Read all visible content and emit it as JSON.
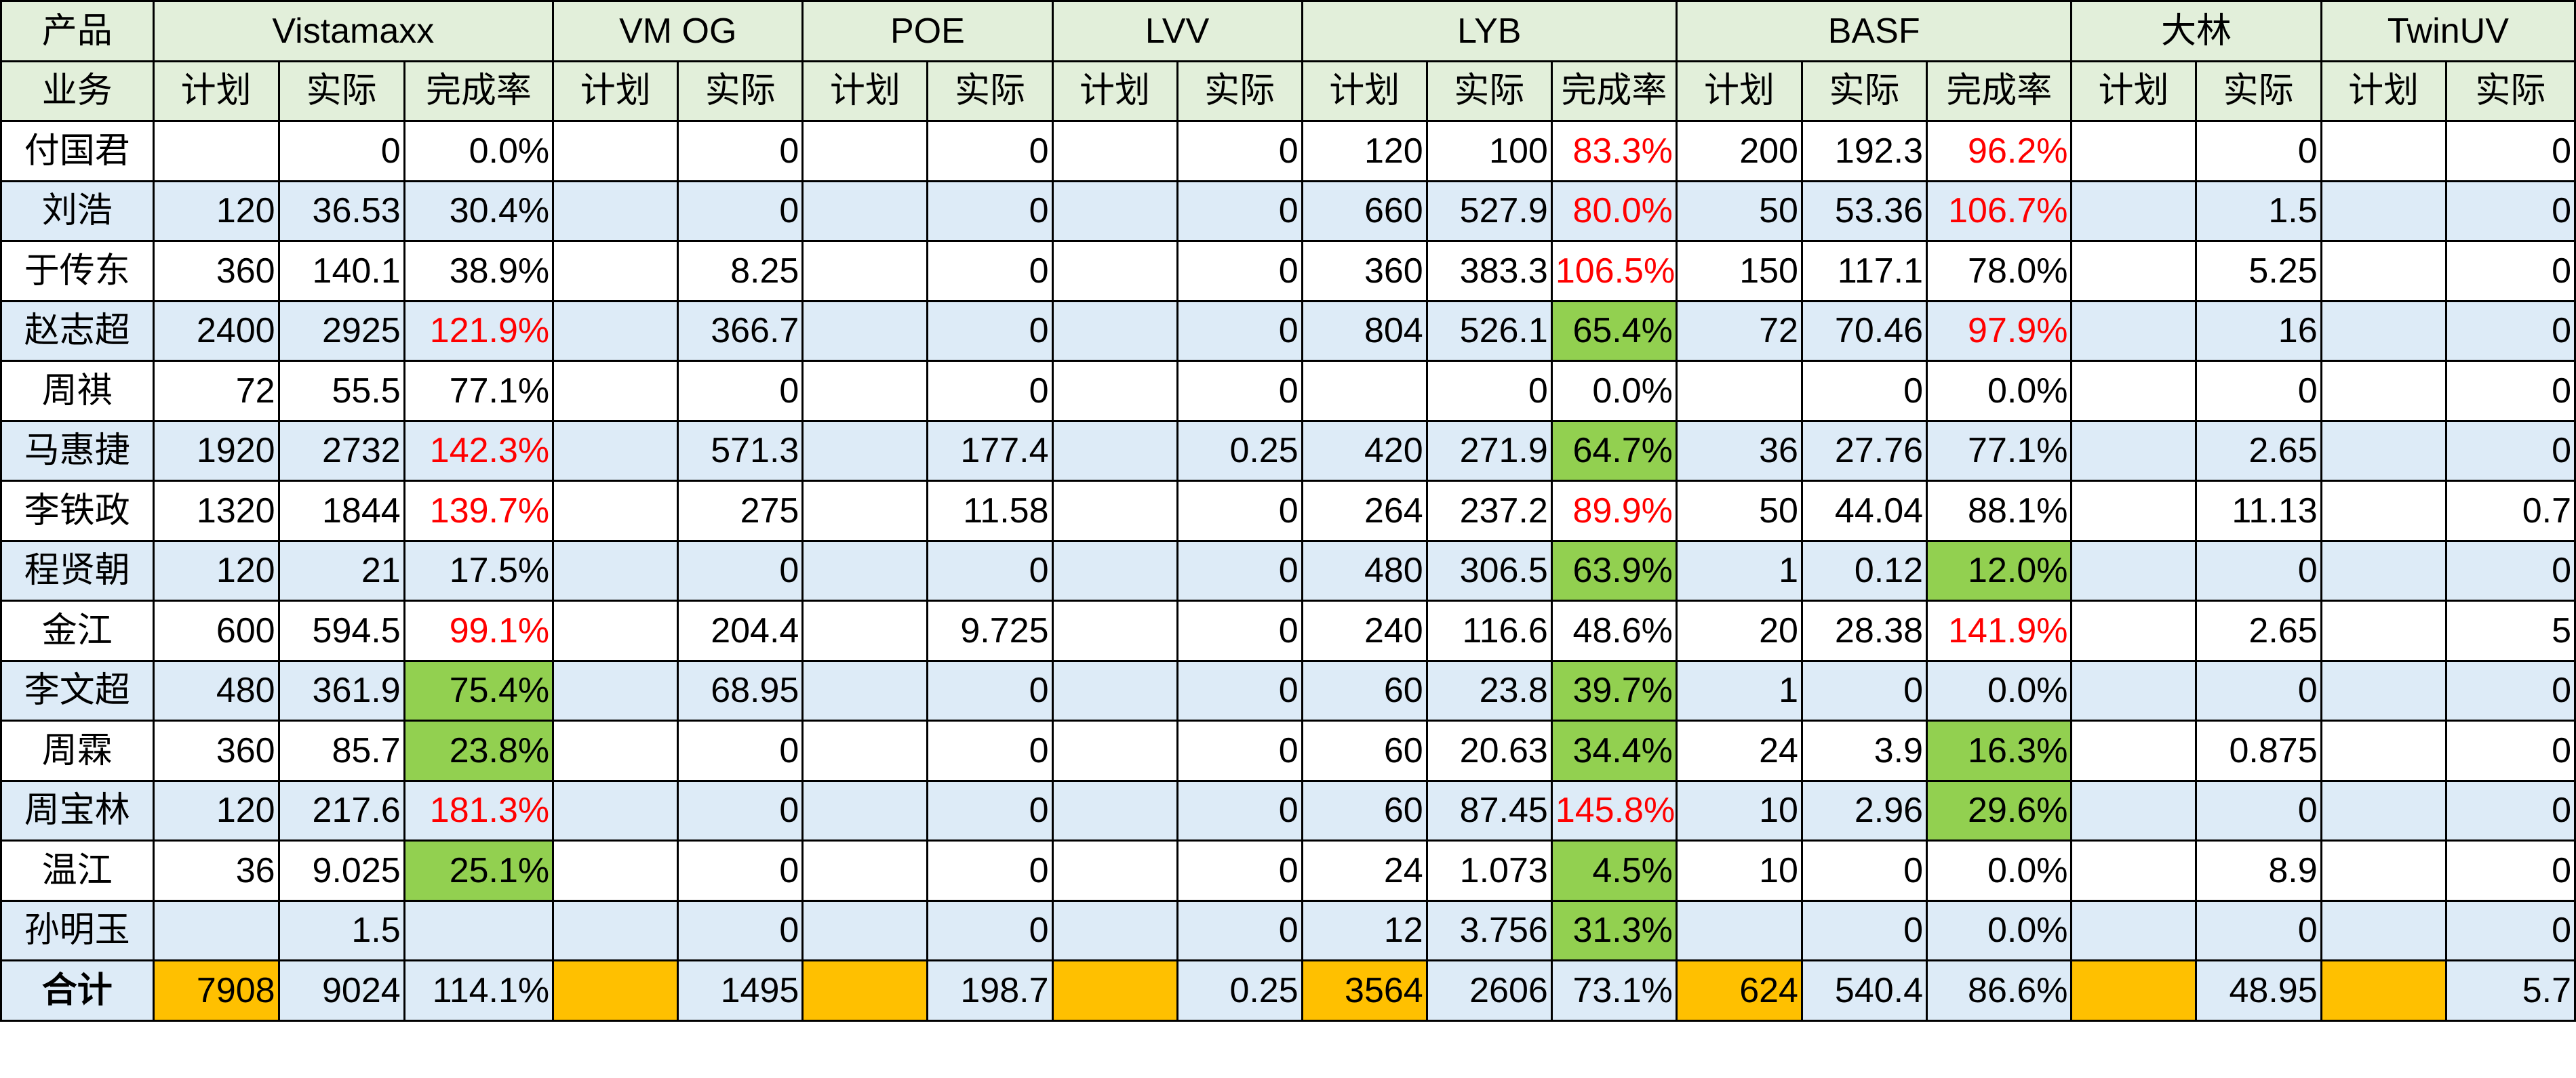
{
  "header": {
    "corner_top": "产品",
    "corner_bottom": "业务",
    "products": [
      {
        "name": "Vistamaxx",
        "cols": [
          "计划",
          "实际",
          "完成率"
        ]
      },
      {
        "name": "VM OG",
        "cols": [
          "计划",
          "实际"
        ]
      },
      {
        "name": "POE",
        "cols": [
          "计划",
          "实际"
        ]
      },
      {
        "name": "LVV",
        "cols": [
          "计划",
          "实际"
        ]
      },
      {
        "name": "LYB",
        "cols": [
          "计划",
          "实际",
          "完成率"
        ]
      },
      {
        "name": "BASF",
        "cols": [
          "计划",
          "实际",
          "完成率"
        ]
      },
      {
        "name": "大林",
        "cols": [
          "计划",
          "实际"
        ]
      },
      {
        "name": "TwinUV",
        "cols": [
          "计划",
          "实际"
        ]
      }
    ]
  },
  "rows": [
    {
      "name": "付国君",
      "cells": [
        "",
        "0",
        "0.0%",
        "",
        "0",
        "",
        "0",
        "",
        "0",
        "120",
        "100",
        "83.3%",
        "200",
        "192.3",
        "96.2%",
        "",
        "0",
        "",
        "0"
      ]
    },
    {
      "name": "刘浩",
      "cells": [
        "120",
        "36.53",
        "30.4%",
        "",
        "0",
        "",
        "0",
        "",
        "0",
        "660",
        "527.9",
        "80.0%",
        "50",
        "53.36",
        "106.7%",
        "",
        "1.5",
        "",
        "0"
      ]
    },
    {
      "name": "于传东",
      "cells": [
        "360",
        "140.1",
        "38.9%",
        "",
        "8.25",
        "",
        "0",
        "",
        "0",
        "360",
        "383.3",
        "106.5%",
        "150",
        "117.1",
        "78.0%",
        "",
        "5.25",
        "",
        "0"
      ]
    },
    {
      "name": "赵志超",
      "cells": [
        "2400",
        "2925",
        "121.9%",
        "",
        "366.7",
        "",
        "0",
        "",
        "0",
        "804",
        "526.1",
        "65.4%",
        "72",
        "70.46",
        "97.9%",
        "",
        "16",
        "",
        "0"
      ]
    },
    {
      "name": "周祺",
      "cells": [
        "72",
        "55.5",
        "77.1%",
        "",
        "0",
        "",
        "0",
        "",
        "0",
        "",
        "0",
        "0.0%",
        "",
        "0",
        "0.0%",
        "",
        "0",
        "",
        "0"
      ]
    },
    {
      "name": "马惠捷",
      "cells": [
        "1920",
        "2732",
        "142.3%",
        "",
        "571.3",
        "",
        "177.4",
        "",
        "0.25",
        "420",
        "271.9",
        "64.7%",
        "36",
        "27.76",
        "77.1%",
        "",
        "2.65",
        "",
        "0"
      ]
    },
    {
      "name": "李铁政",
      "cells": [
        "1320",
        "1844",
        "139.7%",
        "",
        "275",
        "",
        "11.58",
        "",
        "0",
        "264",
        "237.2",
        "89.9%",
        "50",
        "44.04",
        "88.1%",
        "",
        "11.13",
        "",
        "0.7"
      ]
    },
    {
      "name": "程贤朝",
      "cells": [
        "120",
        "21",
        "17.5%",
        "",
        "0",
        "",
        "0",
        "",
        "0",
        "480",
        "306.5",
        "63.9%",
        "1",
        "0.12",
        "12.0%",
        "",
        "0",
        "",
        "0"
      ]
    },
    {
      "name": "金江",
      "cells": [
        "600",
        "594.5",
        "99.1%",
        "",
        "204.4",
        "",
        "9.725",
        "",
        "0",
        "240",
        "116.6",
        "48.6%",
        "20",
        "28.38",
        "141.9%",
        "",
        "2.65",
        "",
        "5"
      ]
    },
    {
      "name": "李文超",
      "cells": [
        "480",
        "361.9",
        "75.4%",
        "",
        "68.95",
        "",
        "0",
        "",
        "0",
        "60",
        "23.8",
        "39.7%",
        "1",
        "0",
        "0.0%",
        "",
        "0",
        "",
        "0"
      ]
    },
    {
      "name": "周霖",
      "cells": [
        "360",
        "85.7",
        "23.8%",
        "",
        "0",
        "",
        "0",
        "",
        "0",
        "60",
        "20.63",
        "34.4%",
        "24",
        "3.9",
        "16.3%",
        "",
        "0.875",
        "",
        "0"
      ]
    },
    {
      "name": "周宝林",
      "cells": [
        "120",
        "217.6",
        "181.3%",
        "",
        "0",
        "",
        "0",
        "",
        "0",
        "60",
        "87.45",
        "145.8%",
        "10",
        "2.96",
        "29.6%",
        "",
        "0",
        "",
        "0"
      ]
    },
    {
      "name": "温江",
      "cells": [
        "36",
        "9.025",
        "25.1%",
        "",
        "0",
        "",
        "0",
        "",
        "0",
        "24",
        "1.073",
        "4.5%",
        "10",
        "0",
        "0.0%",
        "",
        "8.9",
        "",
        "0"
      ]
    },
    {
      "name": "孙明玉",
      "cells": [
        "",
        "1.5",
        "",
        "",
        "0",
        "",
        "0",
        "",
        "0",
        "12",
        "3.756",
        "31.3%",
        "",
        "0",
        "0.0%",
        "",
        "0",
        "",
        "0"
      ]
    }
  ],
  "total": {
    "name": "合计",
    "cells": [
      "7908",
      "9024",
      "114.1%",
      "",
      "1495",
      "",
      "198.7",
      "",
      "0.25",
      "3564",
      "2606",
      "73.1%",
      "624",
      "540.4",
      "86.6%",
      "",
      "48.95",
      "",
      "5.7"
    ]
  },
  "colors": {
    "header_bg": "#e2efda",
    "alt_row_bg": "#ddebf7",
    "over_target_text": "#ff0000",
    "under_target_fill": "#92d050",
    "total_plan_fill": "#ffc000"
  }
}
